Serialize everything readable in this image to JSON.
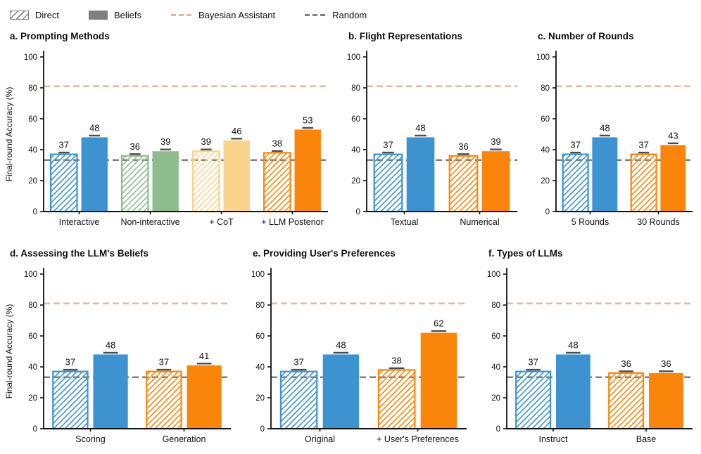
{
  "legend": {
    "items": [
      {
        "label": "Direct",
        "type": "hatched-patch",
        "color": "#7f7f7f"
      },
      {
        "label": "Beliefs",
        "type": "solid-patch",
        "color": "#7f7f7f"
      },
      {
        "label": "Bayesian Assistant",
        "type": "dashed-line",
        "color": "#DFBBA3"
      },
      {
        "label": "Random",
        "type": "dashed-line",
        "color": "#7F7F7F"
      }
    ]
  },
  "chart_config": {
    "ylabel": "Final-round Accuracy (%)",
    "yticks": [
      0,
      20,
      40,
      60,
      80,
      100
    ],
    "ylim": [
      0,
      105
    ],
    "grid": false,
    "legend_position": "top-left",
    "series_names": [
      "Direct",
      "Beliefs"
    ],
    "baselines": [
      {
        "name": "Bayesian Assistant",
        "value": 81,
        "color": "#DFBBA3",
        "style": "dashed"
      },
      {
        "name": "Random",
        "value": 33.3,
        "color": "#7F7F7F",
        "style": "dashed"
      }
    ],
    "error_bars": {
      "visible": true,
      "approx_value": 0.5,
      "color": "#4D4D4D"
    },
    "axis_color": "#111111"
  },
  "chart_data": [
    {
      "id": "a",
      "type": "bar",
      "title": "a. Prompting Methods",
      "categories": [
        "Interactive",
        "Non-interactive",
        "+ CoT",
        "+ LLM Posterior"
      ],
      "series": [
        {
          "name": "Direct",
          "values": [
            37,
            36,
            39,
            38
          ]
        },
        {
          "name": "Beliefs",
          "values": [
            48,
            39,
            46,
            53
          ]
        }
      ],
      "group_colors": [
        "#3D93D0",
        "#8FBC8F",
        "#FAD48C",
        "#F9860B"
      ],
      "show_ylabel": true
    },
    {
      "id": "b",
      "type": "bar",
      "title": "b. Flight Representations",
      "categories": [
        "Textual",
        "Numerical"
      ],
      "series": [
        {
          "name": "Direct",
          "values": [
            37,
            36
          ]
        },
        {
          "name": "Beliefs",
          "values": [
            48,
            39
          ]
        }
      ],
      "group_colors": [
        "#3D93D0",
        "#F9860B"
      ],
      "show_ylabel": false
    },
    {
      "id": "c",
      "type": "bar",
      "title": "c. Number of Rounds",
      "categories": [
        "5 Rounds",
        "30 Rounds"
      ],
      "series": [
        {
          "name": "Direct",
          "values": [
            37,
            37
          ]
        },
        {
          "name": "Beliefs",
          "values": [
            48,
            43
          ]
        }
      ],
      "group_colors": [
        "#3D93D0",
        "#F9860B"
      ],
      "show_ylabel": false
    },
    {
      "id": "d",
      "type": "bar",
      "title": "d. Assessing the LLM's Beliefs",
      "categories": [
        "Scoring",
        "Generation"
      ],
      "series": [
        {
          "name": "Direct",
          "values": [
            37,
            37
          ]
        },
        {
          "name": "Beliefs",
          "values": [
            48,
            41
          ]
        }
      ],
      "group_colors": [
        "#3D93D0",
        "#F9860B"
      ],
      "show_ylabel": true
    },
    {
      "id": "e",
      "type": "bar",
      "title": "e. Providing User's Preferences",
      "categories": [
        "Original",
        "+ User's Preferences"
      ],
      "series": [
        {
          "name": "Direct",
          "values": [
            37,
            38
          ]
        },
        {
          "name": "Beliefs",
          "values": [
            48,
            62
          ]
        }
      ],
      "group_colors": [
        "#3D93D0",
        "#F9860B"
      ],
      "show_ylabel": false
    },
    {
      "id": "f",
      "type": "bar",
      "title": "f. Types of LLMs",
      "categories": [
        "Instruct",
        "Base"
      ],
      "series": [
        {
          "name": "Direct",
          "values": [
            37,
            36
          ]
        },
        {
          "name": "Beliefs",
          "values": [
            48,
            36
          ]
        }
      ],
      "group_colors": [
        "#3D93D0",
        "#F9860B"
      ],
      "show_ylabel": false
    }
  ]
}
